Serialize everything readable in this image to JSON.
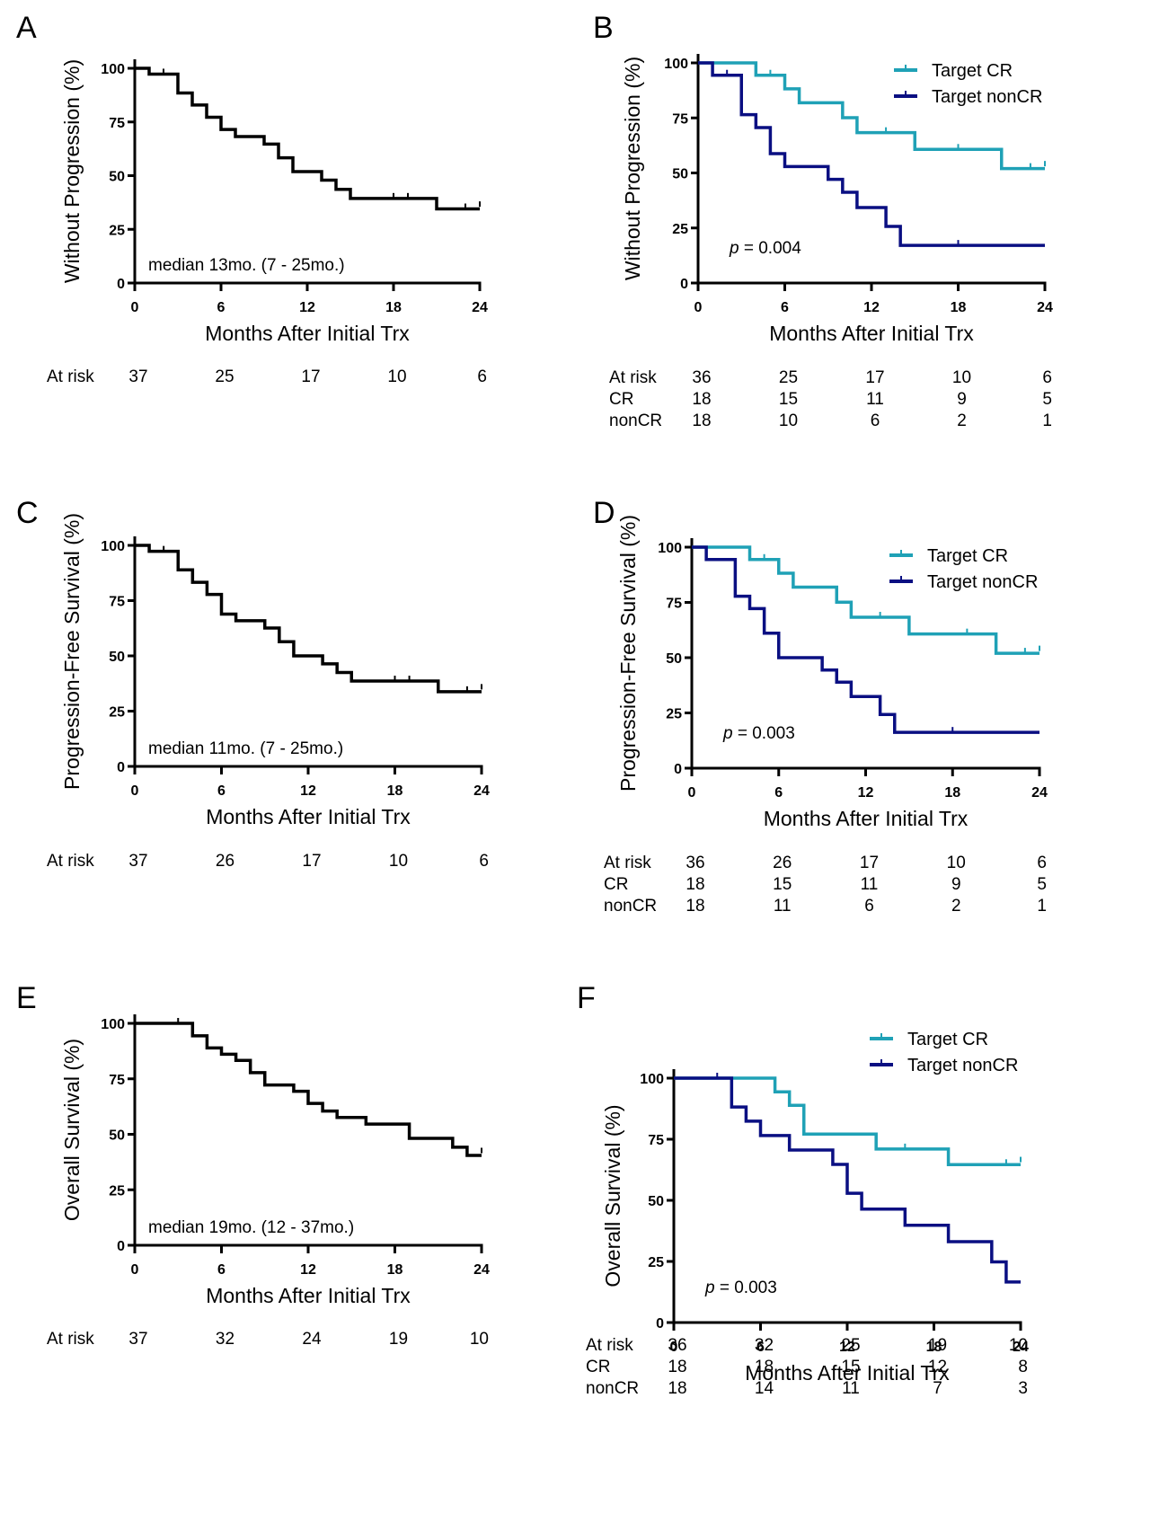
{
  "colors": {
    "overall": "#000000",
    "cr": "#1fa1b6",
    "noncr": "#0a0f82",
    "axis": "#000000"
  },
  "chart_data": [
    {
      "id": "A",
      "type": "line",
      "step": true,
      "panel_label": "A",
      "title": "",
      "ylabel": "Without Progression (%)",
      "xlabel": "Months After Initial Trx",
      "xlim": [
        0,
        24
      ],
      "ylim": [
        0,
        100
      ],
      "xticks": [
        0,
        6,
        12,
        18,
        24
      ],
      "yticks": [
        0,
        25,
        50,
        75,
        100
      ],
      "grid": false,
      "annotation": "median 13mo. (7 - 25mo.)",
      "legend": null,
      "series": [
        {
          "name": "All",
          "color_key": "overall",
          "steps": [
            [
              0,
              100
            ],
            [
              1,
              97.3
            ],
            [
              3,
              88.5
            ],
            [
              4,
              82.9
            ],
            [
              5,
              77.2
            ],
            [
              6,
              71.5
            ],
            [
              7,
              68.2
            ],
            [
              9,
              64.7
            ],
            [
              10,
              58.3
            ],
            [
              11,
              51.9
            ],
            [
              13,
              47.9
            ],
            [
              14,
              43.6
            ],
            [
              15,
              39.4
            ],
            [
              21,
              34.5
            ],
            [
              24,
              34.5
            ]
          ],
          "censors": [
            [
              2,
              97.3
            ],
            [
              18,
              39.4
            ],
            [
              19,
              39.4
            ],
            [
              23,
              34.5
            ],
            [
              24,
              35.5
            ]
          ]
        }
      ],
      "at_risk": {
        "times": [
          0,
          6,
          12,
          18,
          24
        ],
        "rows": [
          {
            "label": "At risk",
            "values": [
              37,
              25,
              17,
              10,
              6
            ]
          }
        ]
      }
    },
    {
      "id": "B",
      "type": "line",
      "step": true,
      "panel_label": "B",
      "title": "",
      "ylabel": "Without Progression (%)",
      "xlabel": "Months After Initial Trx",
      "xlim": [
        0,
        24
      ],
      "ylim": [
        0,
        100
      ],
      "xticks": [
        0,
        6,
        12,
        18,
        24
      ],
      "yticks": [
        0,
        25,
        50,
        75,
        100
      ],
      "grid": false,
      "annotation_p": "p",
      "annotation": " = 0.004",
      "legend": {
        "position": "top-right",
        "entries": [
          "Target CR",
          "Target nonCR"
        ]
      },
      "series": [
        {
          "name": "Target CR",
          "color_key": "cr",
          "steps": [
            [
              0,
              100
            ],
            [
              4,
              94.4
            ],
            [
              6,
              88.2
            ],
            [
              7,
              81.9
            ],
            [
              10,
              75.1
            ],
            [
              11,
              68.3
            ],
            [
              15,
              60.7
            ],
            [
              21,
              52.0
            ],
            [
              24,
              52.0
            ]
          ],
          "censors": [
            [
              5,
              94.4
            ],
            [
              13,
              68.3
            ],
            [
              18,
              60.7
            ],
            [
              23,
              52.0
            ],
            [
              24,
              53.0
            ]
          ]
        },
        {
          "name": "Target nonCR",
          "color_key": "noncr",
          "steps": [
            [
              0,
              100
            ],
            [
              1,
              94.4
            ],
            [
              3,
              76.5
            ],
            [
              4,
              70.6
            ],
            [
              5,
              58.8
            ],
            [
              6,
              52.9
            ],
            [
              9,
              47.1
            ],
            [
              10,
              41.2
            ],
            [
              11,
              34.3
            ],
            [
              13,
              25.7
            ],
            [
              14,
              17.1
            ],
            [
              24,
              17.1
            ]
          ],
          "censors": [
            [
              2,
              94.4
            ],
            [
              18,
              17.1
            ]
          ]
        }
      ],
      "at_risk": {
        "times": [
          0,
          6,
          12,
          18,
          24
        ],
        "rows": [
          {
            "label": "At risk",
            "values": [
              36,
              25,
              17,
              10,
              6
            ]
          },
          {
            "label": "CR",
            "values": [
              18,
              15,
              11,
              9,
              5
            ]
          },
          {
            "label": "nonCR",
            "values": [
              18,
              10,
              6,
              2,
              1
            ]
          }
        ]
      }
    },
    {
      "id": "C",
      "type": "line",
      "step": true,
      "panel_label": "C",
      "title": "",
      "ylabel": "Progression-Free Survival (%)",
      "xlabel": "Months After Initial Trx",
      "xlim": [
        0,
        24
      ],
      "ylim": [
        0,
        100
      ],
      "xticks": [
        0,
        6,
        12,
        18,
        24
      ],
      "yticks": [
        0,
        25,
        50,
        75,
        100
      ],
      "grid": false,
      "annotation": "median 11mo. (7 - 25mo.)",
      "legend": null,
      "series": [
        {
          "name": "All",
          "color_key": "overall",
          "steps": [
            [
              0,
              100
            ],
            [
              1,
              97.3
            ],
            [
              3,
              88.9
            ],
            [
              4,
              83.3
            ],
            [
              5,
              77.8
            ],
            [
              6,
              68.9
            ],
            [
              7,
              65.9
            ],
            [
              9,
              62.6
            ],
            [
              10,
              56.4
            ],
            [
              11,
              50.0
            ],
            [
              13,
              46.4
            ],
            [
              14,
              42.5
            ],
            [
              15,
              38.6
            ],
            [
              21,
              33.8
            ],
            [
              24,
              33.8
            ]
          ],
          "censors": [
            [
              2,
              97.3
            ],
            [
              18,
              38.6
            ],
            [
              19,
              38.6
            ],
            [
              23,
              33.8
            ],
            [
              24,
              34.8
            ]
          ]
        }
      ],
      "at_risk": {
        "times": [
          0,
          6,
          12,
          18,
          24
        ],
        "rows": [
          {
            "label": "At risk",
            "values": [
              37,
              26,
              17,
              10,
              6
            ]
          }
        ]
      }
    },
    {
      "id": "D",
      "type": "line",
      "step": true,
      "panel_label": "D",
      "title": "",
      "ylabel": "Progression-Free Survival (%)",
      "xlabel": "Months After Initial Trx",
      "xlim": [
        0,
        24
      ],
      "ylim": [
        0,
        100
      ],
      "xticks": [
        0,
        6,
        12,
        18,
        24
      ],
      "yticks": [
        0,
        25,
        50,
        75,
        100
      ],
      "grid": false,
      "annotation_p": "p",
      "annotation": " = 0.003",
      "legend": {
        "position": "top-right",
        "entries": [
          "Target CR",
          "Target nonCR"
        ]
      },
      "series": [
        {
          "name": "Target CR",
          "color_key": "cr",
          "steps": [
            [
              0,
              100
            ],
            [
              4,
              94.4
            ],
            [
              6,
              88.2
            ],
            [
              7,
              81.9
            ],
            [
              10,
              75.1
            ],
            [
              11,
              68.3
            ],
            [
              15,
              60.7
            ],
            [
              21,
              52.0
            ],
            [
              24,
              52.0
            ]
          ],
          "censors": [
            [
              5,
              94.4
            ],
            [
              13,
              68.3
            ],
            [
              19,
              60.7
            ],
            [
              23,
              52.0
            ],
            [
              24,
              53.0
            ]
          ]
        },
        {
          "name": "Target nonCR",
          "color_key": "noncr",
          "steps": [
            [
              0,
              100
            ],
            [
              1,
              94.4
            ],
            [
              3,
              77.8
            ],
            [
              4,
              72.2
            ],
            [
              5,
              61.1
            ],
            [
              6,
              50.0
            ],
            [
              9,
              44.4
            ],
            [
              10,
              38.9
            ],
            [
              11,
              32.4
            ],
            [
              13,
              24.3
            ],
            [
              14,
              16.2
            ],
            [
              24,
              16.2
            ]
          ],
          "censors": [
            [
              18,
              16.2
            ]
          ]
        }
      ],
      "at_risk": {
        "times": [
          0,
          6,
          12,
          18,
          24
        ],
        "rows": [
          {
            "label": "At risk",
            "values": [
              36,
              26,
              17,
              10,
              6
            ]
          },
          {
            "label": "CR",
            "values": [
              18,
              15,
              11,
              9,
              5
            ]
          },
          {
            "label": "nonCR",
            "values": [
              18,
              11,
              6,
              2,
              1
            ]
          }
        ]
      }
    },
    {
      "id": "E",
      "type": "line",
      "step": true,
      "panel_label": "E",
      "title": "",
      "ylabel": "Overall Survival (%)",
      "xlabel": "Months After Initial Trx",
      "xlim": [
        0,
        24
      ],
      "ylim": [
        0,
        100
      ],
      "xticks": [
        0,
        6,
        12,
        18,
        24
      ],
      "yticks": [
        0,
        25,
        50,
        75,
        100
      ],
      "grid": false,
      "annotation": "median 19mo. (12 - 37mo.)",
      "legend": null,
      "series": [
        {
          "name": "All",
          "color_key": "overall",
          "steps": [
            [
              0,
              100
            ],
            [
              4,
              94.4
            ],
            [
              5,
              88.9
            ],
            [
              6,
              86.1
            ],
            [
              7,
              83.3
            ],
            [
              8,
              77.8
            ],
            [
              9,
              72.2
            ],
            [
              11,
              69.4
            ],
            [
              12,
              63.9
            ],
            [
              13,
              60.5
            ],
            [
              14,
              57.6
            ],
            [
              16,
              54.6
            ],
            [
              19,
              48.2
            ],
            [
              22,
              44.2
            ],
            [
              23,
              40.5
            ],
            [
              24,
              40.5
            ]
          ],
          "censors": [
            [
              3,
              100
            ],
            [
              24,
              41.5
            ]
          ]
        }
      ],
      "at_risk": {
        "times": [
          0,
          6,
          12,
          18,
          24
        ],
        "rows": [
          {
            "label": "At risk",
            "values": [
              37,
              32,
              24,
              19,
              10
            ]
          }
        ]
      }
    },
    {
      "id": "F",
      "type": "line",
      "step": true,
      "panel_label": "F",
      "title": "",
      "ylabel": "Overall Survival (%)",
      "xlabel": "Months After Initial Trx",
      "xlim": [
        0,
        24
      ],
      "ylim": [
        0,
        100
      ],
      "xticks": [
        0,
        6,
        12,
        18,
        24
      ],
      "yticks": [
        0,
        25,
        50,
        75,
        100
      ],
      "grid": false,
      "annotation_p": "p",
      "annotation": " = 0.003",
      "legend": {
        "position": "top-right",
        "entries": [
          "Target CR",
          "Target nonCR"
        ]
      },
      "series": [
        {
          "name": "Target CR",
          "color_key": "cr",
          "steps": [
            [
              0,
              100
            ],
            [
              7,
              94.4
            ],
            [
              8,
              88.9
            ],
            [
              9,
              77.1
            ],
            [
              14,
              71.0
            ],
            [
              19,
              64.6
            ],
            [
              24,
              64.6
            ]
          ],
          "censors": [
            [
              16,
              71.0
            ],
            [
              23,
              64.6
            ],
            [
              24,
              65.6
            ]
          ]
        },
        {
          "name": "Target nonCR",
          "color_key": "noncr",
          "steps": [
            [
              0,
              100
            ],
            [
              4,
              88.2
            ],
            [
              5,
              82.4
            ],
            [
              6,
              76.5
            ],
            [
              8,
              70.6
            ],
            [
              11,
              64.7
            ],
            [
              12,
              52.9
            ],
            [
              13,
              46.4
            ],
            [
              16,
              39.8
            ],
            [
              19,
              33.1
            ],
            [
              22,
              24.8
            ],
            [
              23,
              16.6
            ],
            [
              24,
              16.6
            ]
          ],
          "censors": [
            [
              3,
              100
            ]
          ]
        }
      ],
      "at_risk": {
        "times": [
          0,
          6,
          12,
          18,
          24
        ],
        "rows": [
          {
            "label": "At risk",
            "values": [
              36,
              32,
              25,
              19,
              10
            ]
          },
          {
            "label": "CR",
            "values": [
              18,
              18,
              15,
              12,
              8
            ]
          },
          {
            "label": "nonCR",
            "values": [
              18,
              14,
              11,
              7,
              3
            ]
          }
        ]
      }
    }
  ]
}
